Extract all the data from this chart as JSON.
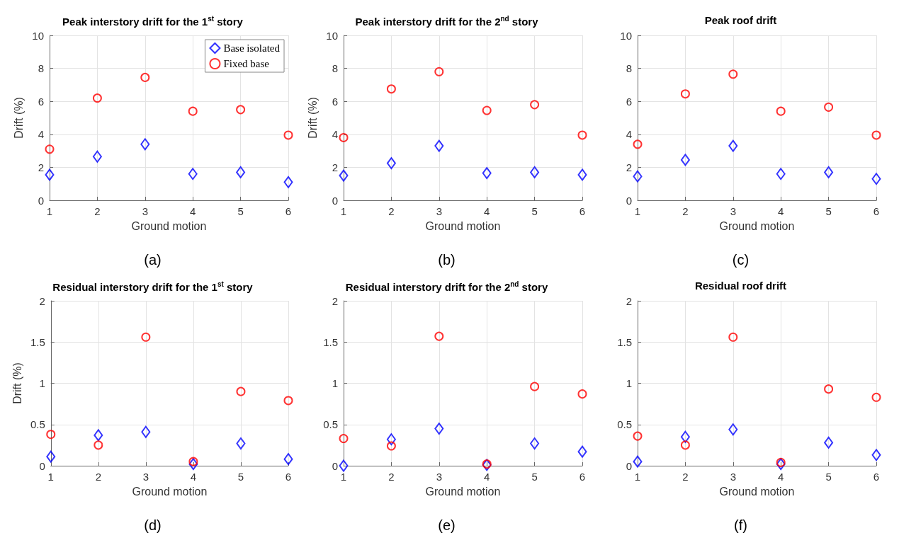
{
  "chart_data": [
    {
      "type": "scatter",
      "title": "Peak interstory drift for the 1$^{st}$ story",
      "xlabel": "Ground motion",
      "ylabel": "Drift (%)",
      "x": [
        1,
        2,
        3,
        4,
        5,
        6
      ],
      "xlim": [
        1,
        6
      ],
      "xticks": [
        1,
        2,
        3,
        4,
        5,
        6
      ],
      "ylim": [
        0,
        10
      ],
      "yticks": [
        0,
        2,
        4,
        6,
        8,
        10
      ],
      "grid": true,
      "legend": "top right",
      "annotations": [
        "(a)"
      ],
      "series": [
        {
          "name": "Base isolated",
          "color": "#0000ff",
          "marker": "diamond",
          "values": [
            1.55,
            2.65,
            3.4,
            1.6,
            1.7,
            1.1
          ]
        },
        {
          "name": "Fixed base",
          "color": "#ff0000",
          "marker": "circle",
          "values": [
            3.1,
            6.2,
            7.45,
            5.4,
            5.5,
            3.95
          ]
        }
      ]
    },
    {
      "type": "scatter",
      "title": "Peak interstory drift for the 2$^{nd}$ story",
      "xlabel": "Ground motion",
      "ylabel": "Drift (%)",
      "x": [
        1,
        2,
        3,
        4,
        5,
        6
      ],
      "xlim": [
        1,
        6
      ],
      "xticks": [
        1,
        2,
        3,
        4,
        5,
        6
      ],
      "ylim": [
        0,
        10
      ],
      "yticks": [
        0,
        2,
        4,
        6,
        8,
        10
      ],
      "grid": true,
      "annotations": [
        "(b)"
      ],
      "series": [
        {
          "color": "#0000ff",
          "marker": "diamond",
          "values": [
            1.5,
            2.25,
            3.3,
            1.65,
            1.7,
            1.55
          ]
        },
        {
          "color": "#ff0000",
          "marker": "circle",
          "values": [
            3.8,
            6.75,
            7.8,
            5.45,
            5.8,
            3.95
          ]
        }
      ]
    },
    {
      "type": "scatter",
      "title": "Peak roof drift",
      "xlabel": "Ground motion",
      "x": [
        1,
        2,
        3,
        4,
        5,
        6
      ],
      "xlim": [
        1,
        6
      ],
      "xticks": [
        1,
        2,
        3,
        4,
        5,
        6
      ],
      "ylim": [
        0,
        10
      ],
      "yticks": [
        0,
        2,
        4,
        6,
        8,
        10
      ],
      "grid": true,
      "annotations": [
        "(c)"
      ],
      "series": [
        {
          "color": "#0000ff",
          "marker": "diamond",
          "values": [
            1.45,
            2.45,
            3.3,
            1.6,
            1.7,
            1.3
          ]
        },
        {
          "color": "#ff0000",
          "marker": "circle",
          "values": [
            3.4,
            6.45,
            7.65,
            5.4,
            5.65,
            3.95
          ]
        }
      ]
    },
    {
      "type": "scatter",
      "title": "Residual interstory drift for the 1$^{st}$ story",
      "xlabel": "Ground motion",
      "ylabel": "Drift (%)",
      "x": [
        1,
        2,
        3,
        4,
        5,
        6
      ],
      "xlim": [
        1,
        6
      ],
      "xticks": [
        1,
        2,
        3,
        4,
        5,
        6
      ],
      "ylim": [
        0,
        2
      ],
      "yticks": [
        0,
        0.5,
        1,
        1.5,
        2
      ],
      "grid": true,
      "annotations": [
        "(d)"
      ],
      "series": [
        {
          "color": "#0000ff",
          "marker": "diamond",
          "values": [
            0.11,
            0.37,
            0.41,
            0.02,
            0.27,
            0.08
          ]
        },
        {
          "color": "#ff0000",
          "marker": "circle",
          "values": [
            0.38,
            0.25,
            1.56,
            0.05,
            0.9,
            0.79
          ]
        }
      ]
    },
    {
      "type": "scatter",
      "title": "Residual interstory drift for the 2$^{nd}$ story",
      "xlabel": "Ground motion",
      "x": [
        1,
        2,
        3,
        4,
        5,
        6
      ],
      "xlim": [
        1,
        6
      ],
      "xticks": [
        1,
        2,
        3,
        4,
        5,
        6
      ],
      "ylim": [
        0,
        2
      ],
      "yticks": [
        0,
        0.5,
        1,
        1.5,
        2
      ],
      "grid": true,
      "annotations": [
        "(e)"
      ],
      "series": [
        {
          "color": "#0000ff",
          "marker": "diamond",
          "values": [
            0,
            0.32,
            0.45,
            0.01,
            0.27,
            0.17
          ]
        },
        {
          "color": "#ff0000",
          "marker": "circle",
          "values": [
            0.33,
            0.24,
            1.57,
            0.02,
            0.96,
            0.87
          ]
        }
      ]
    },
    {
      "type": "scatter",
      "title": "Residual roof drift",
      "xlabel": "Ground motion",
      "x": [
        1,
        2,
        3,
        4,
        5,
        6
      ],
      "xlim": [
        1,
        6
      ],
      "xticks": [
        1,
        2,
        3,
        4,
        5,
        6
      ],
      "ylim": [
        0,
        2
      ],
      "yticks": [
        0,
        0.5,
        1,
        1.5,
        2
      ],
      "grid": true,
      "annotations": [
        "(f)"
      ],
      "series": [
        {
          "color": "#0000ff",
          "marker": "diamond",
          "values": [
            0.05,
            0.35,
            0.44,
            0.02,
            0.28,
            0.13
          ]
        },
        {
          "color": "#ff0000",
          "marker": "circle",
          "values": [
            0.36,
            0.25,
            1.56,
            0.04,
            0.93,
            0.83
          ]
        }
      ]
    }
  ]
}
